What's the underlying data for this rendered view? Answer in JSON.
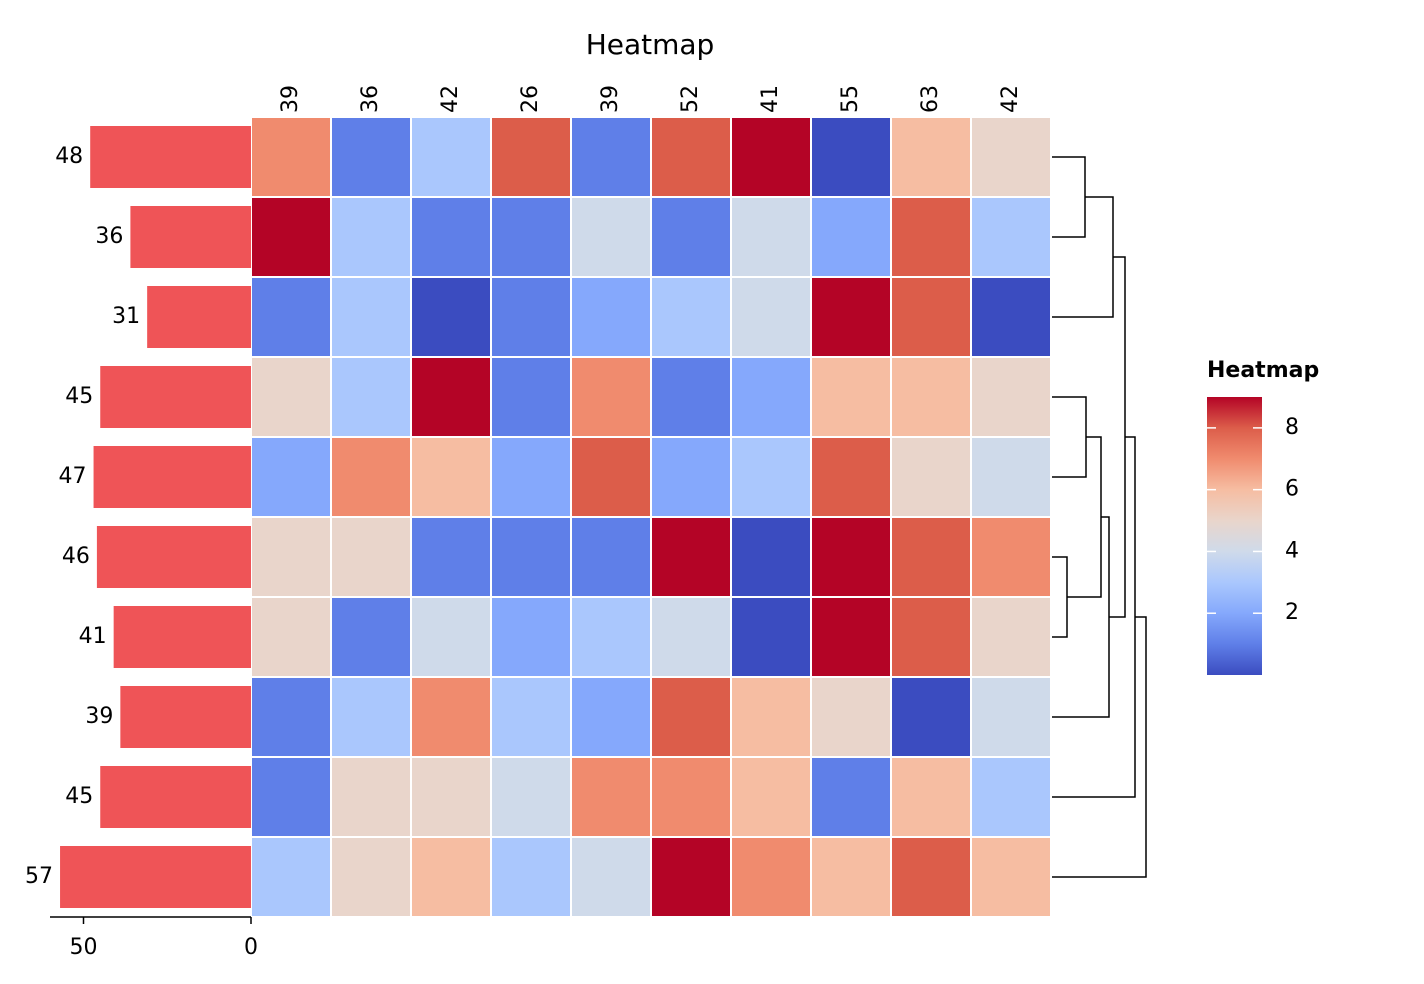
{
  "chart_data": {
    "type": "heatmap",
    "title": "Heatmap",
    "matrix": [
      [
        7,
        1,
        3,
        8,
        1,
        8,
        9,
        0,
        6,
        5
      ],
      [
        9,
        3,
        1,
        1,
        4,
        1,
        4,
        2,
        8,
        3
      ],
      [
        1,
        3,
        0,
        1,
        2,
        3,
        4,
        9,
        8,
        0
      ],
      [
        5,
        3,
        9,
        1,
        7,
        1,
        2,
        6,
        6,
        5
      ],
      [
        2,
        7,
        6,
        2,
        8,
        2,
        3,
        8,
        5,
        4
      ],
      [
        5,
        5,
        1,
        1,
        1,
        9,
        0,
        9,
        8,
        7
      ],
      [
        5,
        1,
        4,
        2,
        3,
        4,
        0,
        9,
        8,
        5
      ],
      [
        1,
        3,
        7,
        3,
        2,
        8,
        6,
        5,
        0,
        4
      ],
      [
        1,
        5,
        5,
        4,
        7,
        7,
        6,
        1,
        6,
        3
      ],
      [
        3,
        5,
        6,
        3,
        4,
        9,
        7,
        6,
        8,
        6
      ]
    ],
    "column_labels": [
      39,
      36,
      42,
      26,
      39,
      52,
      41,
      55,
      63,
      42
    ],
    "colormap": [
      "#3b4cc0",
      "#5f7fe8",
      "#85a8fc",
      "#aac7fd",
      "#cfdaea",
      "#e9d5cb",
      "#f6bda2",
      "#f08b6e",
      "#dc5d4a",
      "#b40426"
    ],
    "clim": [
      0,
      9
    ],
    "colorbar": {
      "title": "Heatmap",
      "ticks": [
        2,
        4,
        6,
        8
      ]
    },
    "row_bars": {
      "type": "bar",
      "values": [
        48,
        36,
        31,
        45,
        47,
        46,
        41,
        39,
        45,
        57
      ],
      "xlim": [
        0,
        60
      ],
      "xticks": [
        0,
        50
      ],
      "color": "#ef5457"
    }
  }
}
